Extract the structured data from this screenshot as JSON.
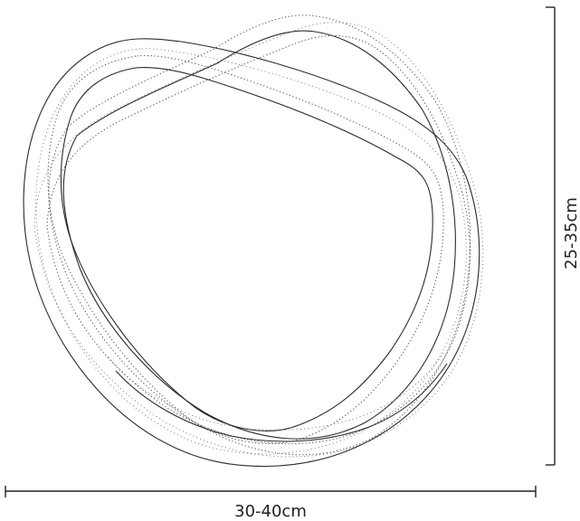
{
  "dimensions": {
    "width_label": "30-40cm",
    "height_label": "25-35cm"
  },
  "colors": {
    "line": "#222222",
    "background": "#ffffff"
  }
}
